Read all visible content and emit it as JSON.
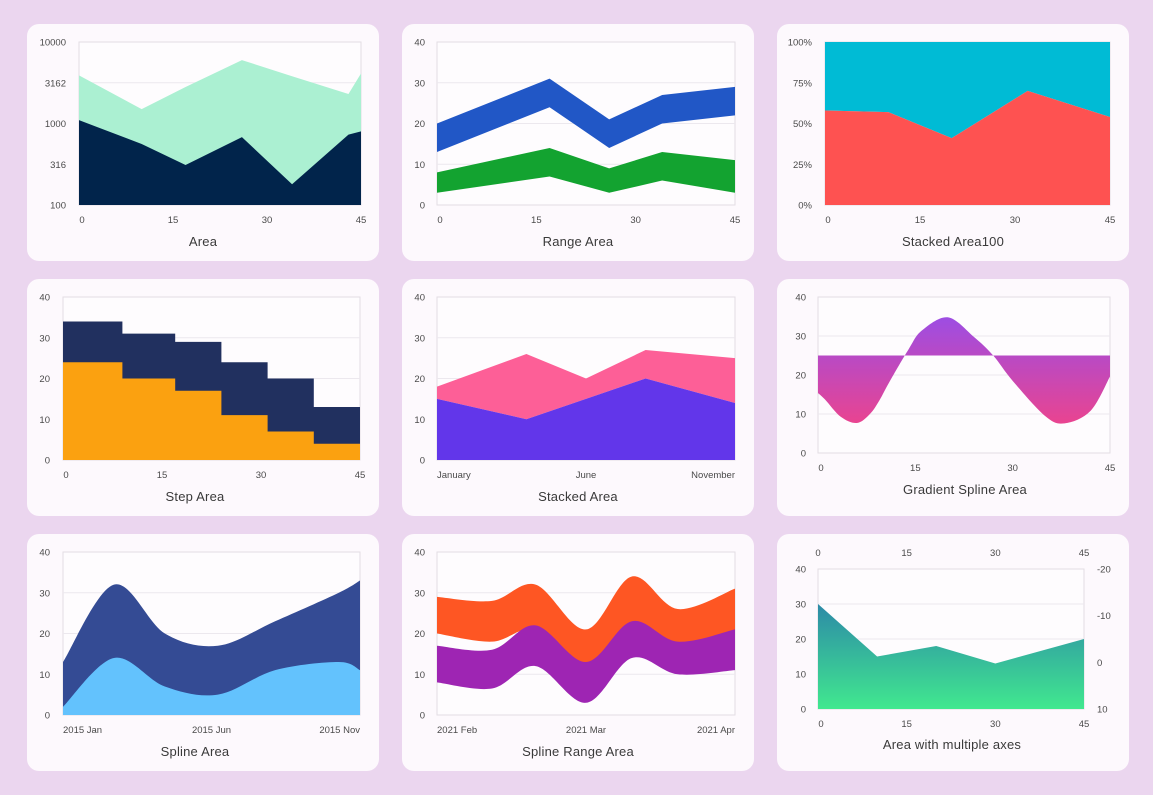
{
  "chart_data": [
    {
      "id": "area",
      "type": "area",
      "title": "Area",
      "x": [
        0,
        10,
        17,
        26,
        34,
        43,
        45
      ],
      "series": [
        {
          "values": [
            3900,
            1500,
            2800,
            6000,
            3800,
            2300,
            4100
          ],
          "color": "#abf0d2"
        },
        {
          "values": [
            1100,
            560,
            310,
            680,
            180,
            730,
            800
          ],
          "color": "#01244b"
        }
      ],
      "xlim": [
        0,
        45
      ],
      "xticks": [
        "0",
        "15",
        "30",
        "45"
      ],
      "ylim": [
        100,
        10000
      ],
      "yscale": "log",
      "yticks": [
        "100",
        "316",
        "1000",
        "3162",
        "10000"
      ],
      "grid": true
    },
    {
      "id": "range",
      "type": "range-area",
      "title": "Range Area",
      "x": [
        0,
        17,
        26,
        34,
        45
      ],
      "series": [
        {
          "low": [
            13,
            24,
            14,
            20,
            22
          ],
          "high": [
            20,
            31,
            21,
            27,
            29
          ],
          "color": "#2157c6"
        },
        {
          "low": [
            3,
            7,
            3,
            6,
            3
          ],
          "high": [
            8,
            14,
            9,
            13,
            11
          ],
          "color": "#13a330"
        }
      ],
      "xlim": [
        0,
        45
      ],
      "xticks": [
        "0",
        "15",
        "30",
        "45"
      ],
      "ylim": [
        0,
        40
      ],
      "yticks": [
        "0",
        "10",
        "20",
        "30",
        "40"
      ],
      "grid": true
    },
    {
      "id": "stacked100",
      "type": "area",
      "title": "Stacked Area100",
      "x": [
        0,
        10,
        20,
        32,
        45
      ],
      "series": [
        {
          "values": [
            42,
            43,
            59,
            30,
            46
          ],
          "color": "#00bbd5"
        },
        {
          "values": [
            58,
            57,
            41,
            70,
            54
          ],
          "color": "#fe5251"
        }
      ],
      "xlim": [
        0,
        45
      ],
      "xticks": [
        "0",
        "15",
        "30",
        "45"
      ],
      "ylim": [
        0,
        100
      ],
      "yticks": [
        "0%",
        "25%",
        "50%",
        "75%",
        "100%"
      ],
      "grid": true
    },
    {
      "id": "step",
      "type": "step-area",
      "title": "Step Area",
      "x": [
        0,
        9,
        17,
        24,
        31,
        38,
        45
      ],
      "series": [
        {
          "values": [
            34,
            31,
            29,
            24,
            20,
            13,
            13
          ],
          "color": "#21305f"
        },
        {
          "values": [
            24,
            20,
            17,
            11,
            7,
            4,
            4
          ],
          "color": "#fba110"
        }
      ],
      "xlim": [
        0,
        45
      ],
      "xticks": [
        "0",
        "15",
        "30",
        "45"
      ],
      "ylim": [
        0,
        40
      ],
      "yticks": [
        "0",
        "10",
        "20",
        "30",
        "40"
      ],
      "grid": true
    },
    {
      "id": "stacked",
      "type": "area",
      "title": "Stacked Area",
      "x": [
        0,
        3,
        5,
        7,
        10
      ],
      "series": [
        {
          "values": [
            18,
            26,
            20,
            27,
            25
          ],
          "color": "#fd5f97"
        },
        {
          "values": [
            15,
            10,
            15,
            20,
            14
          ],
          "color": "#6236ea"
        }
      ],
      "xlim": [
        0,
        10
      ],
      "xticks": [
        "January",
        "June",
        "November"
      ],
      "ylim": [
        0,
        40
      ],
      "yticks": [
        "0",
        "10",
        "20",
        "30",
        "40"
      ],
      "grid": true
    },
    {
      "id": "gradient",
      "type": "spline-area",
      "title": "Gradient Spline Area",
      "x": [
        0,
        1.1,
        3.5,
        6,
        8,
        9.5,
        11,
        14,
        16,
        20,
        24,
        27,
        30,
        35,
        38,
        42,
        45
      ],
      "values": [
        15.4,
        13.7,
        9.3,
        7.7,
        10,
        13.6,
        18.2,
        26.7,
        31.4,
        34.8,
        29.8,
        25,
        18.5,
        9.5,
        7.6,
        10.8,
        19.6
      ],
      "baseline": 25,
      "colors": {
        "top": "#9d4de3",
        "bottom": "#e94490"
      },
      "xlim": [
        0,
        45
      ],
      "xticks": [
        "0",
        "15",
        "30",
        "45"
      ],
      "ylim": [
        0,
        40
      ],
      "yticks": [
        "0",
        "10",
        "20",
        "30",
        "40"
      ],
      "grid": true
    },
    {
      "id": "spline",
      "type": "spline-area",
      "title": "Spline Area",
      "x": [
        0,
        2.4,
        4.8,
        7.3,
        10,
        13,
        14
      ],
      "series": [
        {
          "values": [
            13,
            32,
            20,
            17,
            23,
            30,
            33
          ],
          "color": "#344b94"
        },
        {
          "values": [
            2,
            14,
            7,
            5,
            11,
            13,
            11
          ],
          "color": "#63c2fd"
        }
      ],
      "xlim": [
        0,
        14
      ],
      "xticks": [
        "2015 Jan",
        "2015 Jun",
        "2015 Nov"
      ],
      "ylim": [
        0,
        40
      ],
      "yticks": [
        "0",
        "10",
        "20",
        "30",
        "40"
      ],
      "grid": true
    },
    {
      "id": "splinerange",
      "type": "spline-range-area",
      "title": "Spline Range Area",
      "x": [
        0,
        2.4,
        4.3,
        6.5,
        8.5,
        10.5,
        13
      ],
      "series": [
        {
          "low": [
            20,
            18,
            21,
            12,
            18,
            15,
            16
          ],
          "high": [
            29,
            28,
            32,
            21,
            34,
            26,
            31
          ],
          "color": "#fe5623"
        },
        {
          "low": [
            8,
            6.5,
            12,
            3,
            14,
            10,
            11
          ],
          "high": [
            17,
            16,
            22,
            13,
            23,
            18,
            21
          ],
          "color": "#9e25b3"
        }
      ],
      "xlim": [
        0,
        13
      ],
      "xticks": [
        "2021 Feb",
        "2021 Mar",
        "2021 Apr"
      ],
      "ylim": [
        0,
        40
      ],
      "yticks": [
        "0",
        "10",
        "20",
        "30",
        "40"
      ],
      "grid": true
    },
    {
      "id": "multiaxes",
      "type": "area",
      "title": "Area with multiple axes",
      "x": [
        0,
        10,
        20,
        30,
        45
      ],
      "values": [
        30,
        15,
        18,
        13,
        20
      ],
      "colors": {
        "top": "#2c8aa7",
        "bottom": "#41e88f"
      },
      "xlim": [
        0,
        45
      ],
      "xticks": [
        "0",
        "15",
        "30",
        "45"
      ],
      "ylim": [
        0,
        40
      ],
      "yticks": [
        "0",
        "10",
        "20",
        "30",
        "40"
      ],
      "x2ticks": [
        "0",
        "15",
        "30",
        "45"
      ],
      "y2ticks": [
        "10",
        "0",
        "-10",
        "-20"
      ],
      "grid": true
    }
  ]
}
